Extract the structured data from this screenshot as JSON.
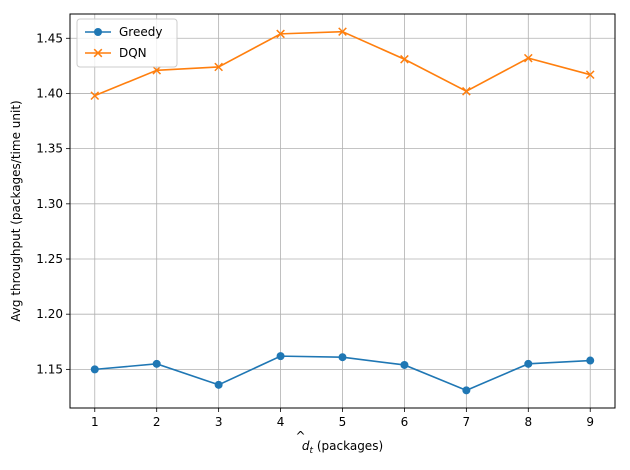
{
  "chart_data": {
    "type": "line",
    "x": [
      1,
      2,
      3,
      4,
      5,
      6,
      7,
      8,
      9
    ],
    "series": [
      {
        "name": "Greedy",
        "marker": "circle",
        "color": "#1f77b4",
        "values": [
          1.15,
          1.155,
          1.136,
          1.162,
          1.161,
          1.154,
          1.131,
          1.155,
          1.158
        ]
      },
      {
        "name": "DQN",
        "marker": "x",
        "color": "#ff7f0e",
        "values": [
          1.398,
          1.421,
          1.424,
          1.454,
          1.456,
          1.431,
          1.402,
          1.432,
          1.417
        ]
      }
    ],
    "xlabel_var": "d",
    "xlabel_sub": "t",
    "xlabel_unit": " (packages)",
    "ylabel": "Avg throughput (packages/time unit)",
    "xticks": [
      "1",
      "2",
      "3",
      "4",
      "5",
      "6",
      "7",
      "8",
      "9"
    ],
    "yticks": [
      "1.15",
      "1.20",
      "1.25",
      "1.30",
      "1.35",
      "1.40",
      "1.45"
    ],
    "xlim": [
      0.6,
      9.4
    ],
    "ylim": [
      1.115,
      1.472
    ],
    "grid": true,
    "legend_position": "top-left"
  }
}
